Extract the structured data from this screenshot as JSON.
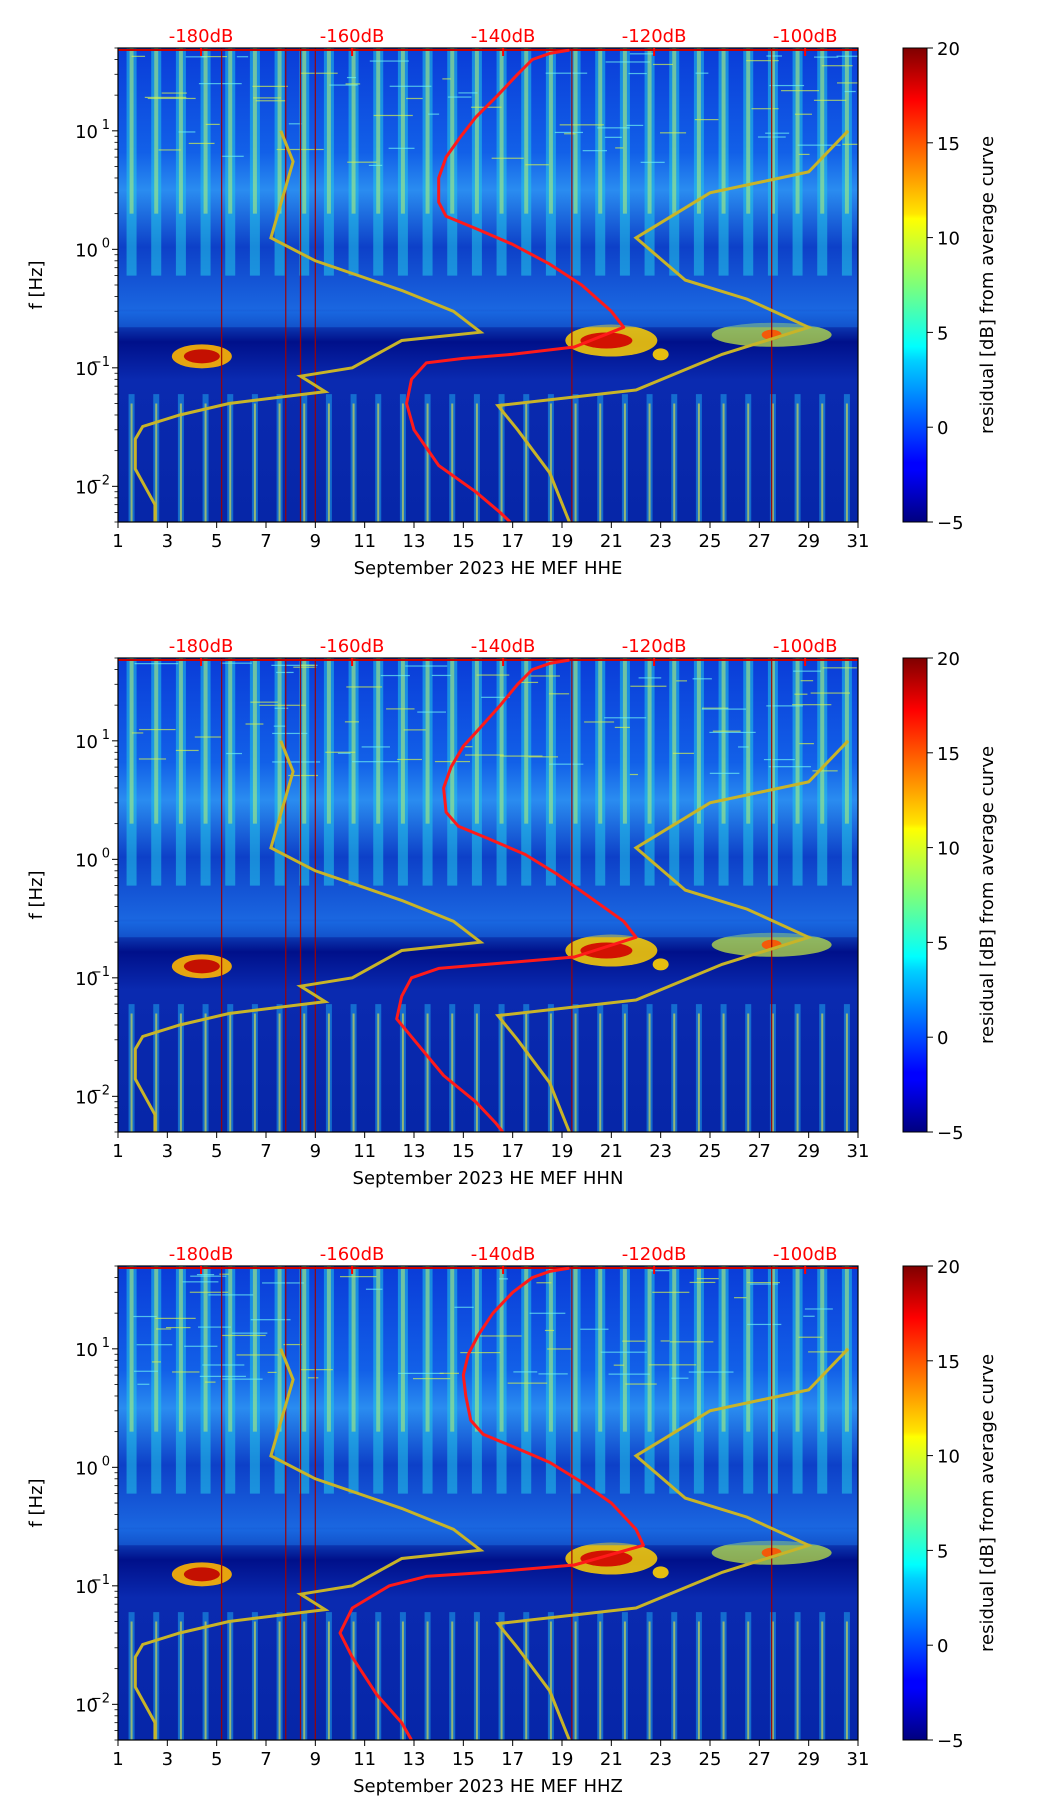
{
  "colors": {
    "db_label": "#ff0000",
    "psd_curve": "#ff1a1a",
    "noise_model": "#c8b428"
  },
  "chart_data": [
    {
      "type": "heatmap",
      "id": "HHE",
      "xlabel": "September 2023 HE MEF  HHE",
      "ylabel": "f [Hz]",
      "xlim": [
        1,
        31
      ],
      "ylim": [
        0.005,
        50
      ],
      "yscale": "log",
      "x_ticks": [
        "1",
        "3",
        "5",
        "7",
        "9",
        "11",
        "13",
        "15",
        "17",
        "19",
        "21",
        "23",
        "25",
        "27",
        "29",
        "31"
      ],
      "y_ticks": [
        {
          "value": 0.01,
          "label": "10",
          "exp": "−2"
        },
        {
          "value": 0.1,
          "label": "10",
          "exp": "−1"
        },
        {
          "value": 1,
          "label": "10",
          "exp": "0"
        },
        {
          "value": 10,
          "label": "10",
          "exp": "1"
        }
      ],
      "db_scale": {
        "labels": [
          "-180dB",
          "-160dB",
          "-140dB",
          "-120dB",
          "-100dB"
        ],
        "values": [
          -180,
          -160,
          -140,
          -120,
          -100
        ],
        "day_range": [
          1,
          31
        ],
        "db_range": [
          -191,
          -93
        ]
      },
      "colorbar": {
        "label": "residual [dB] from average curve",
        "min": -5,
        "max": 20,
        "ticks": [
          -5,
          0,
          5,
          10,
          15,
          20
        ]
      },
      "psd_curve": [
        [
          19.3,
          48
        ],
        [
          18.5,
          45
        ],
        [
          17.8,
          40
        ],
        [
          17.2,
          30
        ],
        [
          16.4,
          20
        ],
        [
          15.5,
          13
        ],
        [
          14.9,
          9
        ],
        [
          14.3,
          6
        ],
        [
          14.0,
          4
        ],
        [
          14.0,
          2.5
        ],
        [
          14.3,
          1.9
        ],
        [
          15.5,
          1.5
        ],
        [
          17.0,
          1.1
        ],
        [
          18.5,
          0.75
        ],
        [
          19.8,
          0.5
        ],
        [
          21.0,
          0.3
        ],
        [
          21.5,
          0.22
        ],
        [
          19.5,
          0.15
        ],
        [
          17,
          0.13
        ],
        [
          15,
          0.12
        ],
        [
          13.5,
          0.11
        ],
        [
          12.9,
          0.08
        ],
        [
          12.7,
          0.05
        ],
        [
          13.0,
          0.03
        ],
        [
          14.0,
          0.015
        ],
        [
          15.5,
          0.009
        ],
        [
          16.5,
          0.006
        ],
        [
          16.9,
          0.005
        ]
      ],
      "noise_models": [
        [
          [
            7.6,
            10
          ],
          [
            8.1,
            5.5
          ],
          [
            7.2,
            1.25
          ],
          [
            9.0,
            0.8
          ],
          [
            12.5,
            0.45
          ],
          [
            14.6,
            0.3
          ],
          [
            15.7,
            0.2
          ],
          [
            12.5,
            0.17
          ],
          [
            10.5,
            0.1
          ],
          [
            8.4,
            0.085
          ],
          [
            9.4,
            0.063
          ],
          [
            5.5,
            0.05
          ],
          [
            3.5,
            0.04
          ],
          [
            2.0,
            0.032
          ],
          [
            1.7,
            0.025
          ],
          [
            1.7,
            0.014
          ],
          [
            2.5,
            0.007
          ],
          [
            2.5,
            0.005
          ]
        ],
        [
          [
            30.6,
            10
          ],
          [
            29.0,
            4.5
          ],
          [
            25.0,
            3.0
          ],
          [
            22.0,
            1.25
          ],
          [
            24.0,
            0.55
          ],
          [
            26.5,
            0.38
          ],
          [
            29.0,
            0.22
          ],
          [
            25.5,
            0.13
          ],
          [
            22.0,
            0.065
          ],
          [
            16.4,
            0.048
          ],
          [
            17.2,
            0.03
          ],
          [
            18.5,
            0.013
          ],
          [
            19.3,
            0.005
          ]
        ]
      ]
    },
    {
      "type": "heatmap",
      "id": "HHN",
      "xlabel": "September 2023 HE MEF  HHN",
      "ylabel": "f [Hz]",
      "xlim": [
        1,
        31
      ],
      "ylim": [
        0.005,
        50
      ],
      "yscale": "log",
      "x_ticks": [
        "1",
        "3",
        "5",
        "7",
        "9",
        "11",
        "13",
        "15",
        "17",
        "19",
        "21",
        "23",
        "25",
        "27",
        "29",
        "31"
      ],
      "y_ticks": [
        {
          "value": 0.01,
          "label": "10",
          "exp": "−2"
        },
        {
          "value": 0.1,
          "label": "10",
          "exp": "−1"
        },
        {
          "value": 1,
          "label": "10",
          "exp": "0"
        },
        {
          "value": 10,
          "label": "10",
          "exp": "1"
        }
      ],
      "db_scale": {
        "labels": [
          "-180dB",
          "-160dB",
          "-140dB",
          "-120dB",
          "-100dB"
        ],
        "values": [
          -180,
          -160,
          -140,
          -120,
          -100
        ],
        "day_range": [
          1,
          31
        ],
        "db_range": [
          -191,
          -93
        ]
      },
      "colorbar": {
        "label": "residual [dB] from average curve",
        "min": -5,
        "max": 20,
        "ticks": [
          -5,
          0,
          5,
          10,
          15,
          20
        ]
      },
      "psd_curve": [
        [
          19.3,
          48
        ],
        [
          18.5,
          45
        ],
        [
          17.8,
          40
        ],
        [
          17.2,
          30
        ],
        [
          16.5,
          20
        ],
        [
          15.7,
          13
        ],
        [
          15.0,
          9
        ],
        [
          14.5,
          6
        ],
        [
          14.2,
          4
        ],
        [
          14.3,
          2.5
        ],
        [
          14.8,
          1.9
        ],
        [
          16.0,
          1.5
        ],
        [
          17.5,
          1.1
        ],
        [
          18.8,
          0.75
        ],
        [
          20.0,
          0.5
        ],
        [
          21.5,
          0.3
        ],
        [
          22.0,
          0.22
        ],
        [
          19.5,
          0.15
        ],
        [
          16,
          0.13
        ],
        [
          14,
          0.12
        ],
        [
          12.9,
          0.1
        ],
        [
          12.5,
          0.07
        ],
        [
          12.3,
          0.045
        ],
        [
          13.0,
          0.03
        ],
        [
          14.2,
          0.015
        ],
        [
          15.5,
          0.009
        ],
        [
          16.3,
          0.006
        ],
        [
          16.6,
          0.005
        ]
      ],
      "noise_models": [
        [
          [
            7.6,
            10
          ],
          [
            8.1,
            5.5
          ],
          [
            7.2,
            1.25
          ],
          [
            9.0,
            0.8
          ],
          [
            12.5,
            0.45
          ],
          [
            14.6,
            0.3
          ],
          [
            15.7,
            0.2
          ],
          [
            12.5,
            0.17
          ],
          [
            10.5,
            0.1
          ],
          [
            8.4,
            0.085
          ],
          [
            9.4,
            0.063
          ],
          [
            5.5,
            0.05
          ],
          [
            3.5,
            0.04
          ],
          [
            2.0,
            0.032
          ],
          [
            1.7,
            0.025
          ],
          [
            1.7,
            0.014
          ],
          [
            2.5,
            0.007
          ],
          [
            2.5,
            0.005
          ]
        ],
        [
          [
            30.6,
            10
          ],
          [
            29.0,
            4.5
          ],
          [
            25.0,
            3.0
          ],
          [
            22.0,
            1.25
          ],
          [
            24.0,
            0.55
          ],
          [
            26.5,
            0.38
          ],
          [
            29.0,
            0.22
          ],
          [
            25.5,
            0.13
          ],
          [
            22.0,
            0.065
          ],
          [
            16.4,
            0.048
          ],
          [
            17.2,
            0.03
          ],
          [
            18.5,
            0.013
          ],
          [
            19.3,
            0.005
          ]
        ]
      ]
    },
    {
      "type": "heatmap",
      "id": "HHZ",
      "xlabel": "September 2023 HE MEF  HHZ",
      "ylabel": "f [Hz]",
      "xlim": [
        1,
        31
      ],
      "ylim": [
        0.005,
        50
      ],
      "yscale": "log",
      "x_ticks": [
        "1",
        "3",
        "5",
        "7",
        "9",
        "11",
        "13",
        "15",
        "17",
        "19",
        "21",
        "23",
        "25",
        "27",
        "29",
        "31"
      ],
      "y_ticks": [
        {
          "value": 0.01,
          "label": "10",
          "exp": "−2"
        },
        {
          "value": 0.1,
          "label": "10",
          "exp": "−1"
        },
        {
          "value": 1,
          "label": "10",
          "exp": "0"
        },
        {
          "value": 10,
          "label": "10",
          "exp": "1"
        }
      ],
      "db_scale": {
        "labels": [
          "-180dB",
          "-160dB",
          "-140dB",
          "-120dB",
          "-100dB"
        ],
        "values": [
          -180,
          -160,
          -140,
          -120,
          -100
        ],
        "day_range": [
          1,
          31
        ],
        "db_range": [
          -191,
          -93
        ]
      },
      "colorbar": {
        "label": "residual [dB] from average curve",
        "min": -5,
        "max": 20,
        "ticks": [
          -5,
          0,
          5,
          10,
          15,
          20
        ]
      },
      "psd_curve": [
        [
          19.3,
          48
        ],
        [
          18.5,
          45
        ],
        [
          17.8,
          40
        ],
        [
          17.0,
          30
        ],
        [
          16.2,
          20
        ],
        [
          15.6,
          13
        ],
        [
          15.2,
          9
        ],
        [
          15.0,
          6
        ],
        [
          15.1,
          4
        ],
        [
          15.3,
          2.5
        ],
        [
          15.8,
          1.9
        ],
        [
          17.0,
          1.5
        ],
        [
          18.5,
          1.1
        ],
        [
          19.8,
          0.75
        ],
        [
          21.0,
          0.5
        ],
        [
          22.0,
          0.3
        ],
        [
          22.3,
          0.22
        ],
        [
          19.5,
          0.15
        ],
        [
          16,
          0.13
        ],
        [
          13.5,
          0.12
        ],
        [
          12,
          0.1
        ],
        [
          10.5,
          0.065
        ],
        [
          10.0,
          0.04
        ],
        [
          10.5,
          0.025
        ],
        [
          11.5,
          0.012
        ],
        [
          12.5,
          0.007
        ],
        [
          12.9,
          0.005
        ]
      ],
      "noise_models": [
        [
          [
            7.6,
            10
          ],
          [
            8.1,
            5.5
          ],
          [
            7.2,
            1.25
          ],
          [
            9.0,
            0.8
          ],
          [
            12.5,
            0.45
          ],
          [
            14.6,
            0.3
          ],
          [
            15.7,
            0.2
          ],
          [
            12.5,
            0.17
          ],
          [
            10.5,
            0.1
          ],
          [
            8.4,
            0.085
          ],
          [
            9.4,
            0.063
          ],
          [
            5.5,
            0.05
          ],
          [
            3.5,
            0.04
          ],
          [
            2.0,
            0.032
          ],
          [
            1.7,
            0.025
          ],
          [
            1.7,
            0.014
          ],
          [
            2.5,
            0.007
          ],
          [
            2.5,
            0.005
          ]
        ],
        [
          [
            30.6,
            10
          ],
          [
            29.0,
            4.5
          ],
          [
            25.0,
            3.0
          ],
          [
            22.0,
            1.25
          ],
          [
            24.0,
            0.55
          ],
          [
            26.5,
            0.38
          ],
          [
            29.0,
            0.22
          ],
          [
            25.5,
            0.13
          ],
          [
            22.0,
            0.065
          ],
          [
            16.4,
            0.048
          ],
          [
            17.2,
            0.03
          ],
          [
            18.5,
            0.013
          ],
          [
            19.3,
            0.005
          ]
        ]
      ]
    }
  ]
}
